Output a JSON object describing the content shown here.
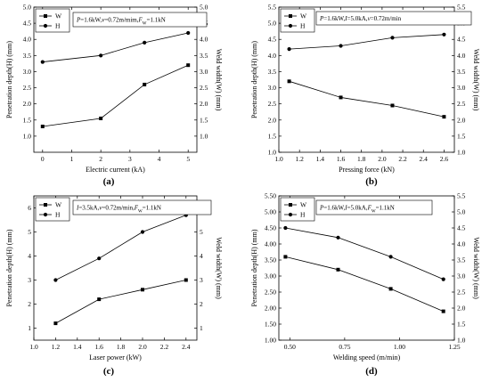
{
  "chart_data": [
    {
      "type": "line",
      "panel_label": "(a)",
      "annotation": [
        "P",
        "=1.6kW,",
        "v",
        "=0.72m/mim,",
        "F",
        "W",
        "=1.1kN"
      ],
      "xlabel": "Electric current (kA)",
      "ylabel_left": "Penetration depth(H) (mm)",
      "ylabel_right": "Weld width(W) (mm)",
      "xlim": [
        -0.3,
        5.3
      ],
      "xticks": [
        0,
        1,
        2,
        3,
        4,
        5
      ],
      "xtick_labels": [
        "0",
        "1",
        "2",
        "3",
        "4",
        "5"
      ],
      "ylim_left": [
        0.5,
        5.0
      ],
      "yticks_left": [
        1.0,
        1.5,
        2.0,
        2.5,
        3.0,
        3.5,
        4.0,
        4.5,
        5.0
      ],
      "ytick_labels_left": [
        "1.0",
        "1.5",
        "2.0",
        "2.5",
        "3.0",
        "3.5",
        "4.0",
        "4.5",
        "5.0"
      ],
      "ylim_right": [
        0.5,
        5.0
      ],
      "yticks_right": [
        1.0,
        1.5,
        2.0,
        2.5,
        3.0,
        3.5,
        4.0,
        4.5,
        5.0
      ],
      "ytick_labels_right": [
        "1.0",
        "1.5",
        "2.0",
        "2.5",
        "3.0",
        "3.5",
        "4.0",
        "4.5",
        "5.0"
      ],
      "x": [
        0,
        2,
        3.5,
        5
      ],
      "series": [
        {
          "name": "W",
          "marker": "square",
          "values": [
            1.3,
            1.55,
            2.6,
            3.2
          ]
        },
        {
          "name": "H",
          "marker": "circle",
          "values": [
            3.3,
            3.5,
            3.9,
            4.2
          ]
        }
      ]
    },
    {
      "type": "line",
      "panel_label": "(b)",
      "annotation": [
        "P",
        "=1.6kW,",
        "I",
        "=5.0kA,",
        "v",
        "=0.72m/min"
      ],
      "xlabel": "Pressing force (kN)",
      "ylabel_left": "Penetration depth(H) (mm)",
      "ylabel_right": "Weld width(W) (mm)",
      "xlim": [
        1.0,
        2.7
      ],
      "xticks": [
        1.0,
        1.2,
        1.4,
        1.6,
        1.8,
        2.0,
        2.2,
        2.4,
        2.6
      ],
      "xtick_labels": [
        "1.0",
        "1.2",
        "1.4",
        "1.6",
        "1.8",
        "2.0",
        "2.2",
        "2.4",
        "2.6"
      ],
      "ylim_left": [
        1.0,
        5.5
      ],
      "yticks_left": [
        1.0,
        1.5,
        2.0,
        2.5,
        3.0,
        3.5,
        4.0,
        4.5,
        5.0,
        5.5
      ],
      "ytick_labels_left": [
        "1.0",
        "1.5",
        "2.0",
        "2.5",
        "3.0",
        "3.5",
        "4.0",
        "4.5",
        "5.0",
        "5.5"
      ],
      "ylim_right": [
        1.0,
        5.5
      ],
      "yticks_right": [
        1.0,
        1.5,
        2.0,
        2.5,
        3.0,
        3.5,
        4.0,
        4.5,
        5.0,
        5.5
      ],
      "ytick_labels_right": [
        "1.0",
        "1.5",
        "2.0",
        "2.5",
        "3.0",
        "3.5",
        "4.0",
        "4.5",
        "5.0",
        "5.5"
      ],
      "x": [
        1.1,
        1.6,
        2.1,
        2.6
      ],
      "series": [
        {
          "name": "W",
          "marker": "square",
          "values": [
            3.2,
            2.7,
            2.45,
            2.1
          ]
        },
        {
          "name": "H",
          "marker": "circle",
          "values": [
            4.2,
            4.3,
            4.55,
            4.65
          ]
        }
      ]
    },
    {
      "type": "line",
      "panel_label": "(c)",
      "annotation": [
        "I",
        "=3.5kA,",
        "v",
        "=0.72m/min,",
        "F",
        "W",
        "=1.1kN"
      ],
      "xlabel": "Laser power (kW)",
      "ylabel_left": "Penetration depth(H) (mm)",
      "ylabel_right": "Weld width(W) (mm)",
      "xlim": [
        1.0,
        2.5
      ],
      "xticks": [
        1.0,
        1.2,
        1.4,
        1.6,
        1.8,
        2.0,
        2.2,
        2.4
      ],
      "xtick_labels": [
        "1.0",
        "1.2",
        "1.4",
        "1.6",
        "1.8",
        "2.0",
        "2.2",
        "2.4"
      ],
      "ylim_left": [
        0.5,
        6.5
      ],
      "yticks_left": [
        1,
        2,
        3,
        4,
        5,
        6
      ],
      "ytick_labels_left": [
        "1",
        "2",
        "3",
        "4",
        "5",
        "6"
      ],
      "ylim_right": [
        0.5,
        6.5
      ],
      "yticks_right": [
        1,
        2,
        3,
        4,
        5,
        6
      ],
      "ytick_labels_right": [
        "1",
        "2",
        "3",
        "4",
        "5",
        "6"
      ],
      "x": [
        1.2,
        1.6,
        2.0,
        2.4
      ],
      "series": [
        {
          "name": "W",
          "marker": "square",
          "values": [
            1.2,
            2.2,
            2.6,
            3.0
          ]
        },
        {
          "name": "H",
          "marker": "circle",
          "values": [
            3.0,
            3.9,
            5.0,
            5.7
          ]
        }
      ]
    },
    {
      "type": "line",
      "panel_label": "(d)",
      "annotation": [
        "P",
        "=1.6kW,",
        "I",
        "=5.0kA,",
        "F",
        "W",
        "=1.1kN"
      ],
      "xlabel": "Welding speed (m/min)",
      "ylabel_left": "Penetration depth(H) (mm)",
      "ylabel_right": "Weld width(W) (mm)",
      "xlim": [
        0.45,
        1.25
      ],
      "xticks": [
        0.5,
        0.75,
        1.0,
        1.25
      ],
      "xtick_labels": [
        "0.50",
        "0.75",
        "1.00",
        "1.25"
      ],
      "ylim_left": [
        1.0,
        5.5
      ],
      "yticks_left": [
        1.0,
        1.5,
        2.0,
        2.5,
        3.0,
        3.5,
        4.0,
        4.5,
        5.0,
        5.5
      ],
      "ytick_labels_left": [
        "1.00",
        "1.50",
        "2.00",
        "2.50",
        "3.00",
        "3.50",
        "4.00",
        "4.50",
        "5.00",
        "5.50"
      ],
      "ylim_right": [
        1.0,
        5.5
      ],
      "yticks_right": [
        1.0,
        1.5,
        2.0,
        2.5,
        3.0,
        3.5,
        4.0,
        4.5,
        5.0,
        5.5
      ],
      "ytick_labels_right": [
        "1.0",
        "1.5",
        "2.0",
        "2.5",
        "3.0",
        "3.5",
        "4.0",
        "4.5",
        "5.0",
        "5.5"
      ],
      "x": [
        0.48,
        0.72,
        0.96,
        1.2
      ],
      "series": [
        {
          "name": "W",
          "marker": "square",
          "values": [
            3.6,
            3.2,
            2.6,
            1.9
          ]
        },
        {
          "name": "H",
          "marker": "circle",
          "values": [
            4.5,
            4.2,
            3.6,
            2.9
          ]
        }
      ]
    }
  ]
}
